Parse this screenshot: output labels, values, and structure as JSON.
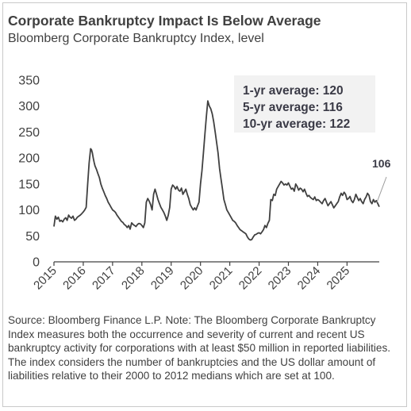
{
  "title": "Corporate Bankruptcy Impact Is Below Average",
  "subtitle": "Bloomberg Corporate Bankruptcy Index, level",
  "source_note": "Source: Bloomberg Finance L.P. Note: The Bloomberg Corporate Bankruptcy Index measures both the occurrence and severity of current and recent US bankruptcy activity for corporations with at least $50 million in reported liabilities. The index considers the number of bankruptcies and the US dollar amount of liabilities relative to their 2000 to 2012 medians which are set at 100.",
  "colors": {
    "line": "#404040",
    "text": "#404040",
    "annotation_bg": "#f2f2f2",
    "annotation_text": "#3a3a46"
  },
  "chart_data": {
    "type": "line",
    "title": "Corporate Bankruptcy Impact Is Below Average",
    "subtitle": "Bloomberg Corporate Bankruptcy Index, level",
    "xlabel": "",
    "ylabel": "",
    "ylim": [
      0,
      350
    ],
    "y_ticks": [
      0,
      50,
      100,
      150,
      200,
      250,
      300,
      350
    ],
    "x_ticks": [
      "2015",
      "2016",
      "2017",
      "2018",
      "2019",
      "2020",
      "2021",
      "2022",
      "2023",
      "2024",
      "2025"
    ],
    "xlim": [
      2015.0,
      2026.1
    ],
    "grid": false,
    "legend": "none",
    "annotations": {
      "averages": [
        "1-yr average: 120",
        "5-yr average: 116",
        "10-yr average: 122"
      ],
      "last_value_label": "106"
    },
    "series": [
      {
        "x": [
          2015.0,
          2015.05,
          2015.1,
          2015.15,
          2015.2,
          2015.25,
          2015.3,
          2015.35,
          2015.4,
          2015.45,
          2015.5,
          2015.55,
          2015.6,
          2015.65,
          2015.7,
          2015.75,
          2015.8,
          2015.85,
          2015.9,
          2015.95,
          2016.0,
          2016.05,
          2016.1,
          2016.15,
          2016.2,
          2016.25,
          2016.28,
          2016.31,
          2016.34,
          2016.37,
          2016.4,
          2016.45,
          2016.5,
          2016.55,
          2016.6,
          2016.65,
          2016.7,
          2016.75,
          2016.8,
          2016.85,
          2016.9,
          2016.95,
          2017.0,
          2017.05,
          2017.1,
          2017.15,
          2017.2,
          2017.25,
          2017.3,
          2017.35,
          2017.4,
          2017.45,
          2017.5,
          2017.55,
          2017.6,
          2017.65,
          2017.7,
          2017.75,
          2017.8,
          2017.85,
          2017.9,
          2017.95,
          2018.0,
          2018.05,
          2018.1,
          2018.15,
          2018.2,
          2018.25,
          2018.3,
          2018.35,
          2018.4,
          2018.45,
          2018.5,
          2018.55,
          2018.6,
          2018.65,
          2018.7,
          2018.75,
          2018.8,
          2018.85,
          2018.9,
          2018.95,
          2019.0,
          2019.05,
          2019.1,
          2019.15,
          2019.2,
          2019.25,
          2019.3,
          2019.35,
          2019.4,
          2019.45,
          2019.5,
          2019.55,
          2019.6,
          2019.65,
          2019.7,
          2019.75,
          2019.8,
          2019.85,
          2019.9,
          2019.95,
          2020.0,
          2020.05,
          2020.1,
          2020.15,
          2020.2,
          2020.25,
          2020.3,
          2020.35,
          2020.4,
          2020.45,
          2020.5,
          2020.55,
          2020.6,
          2020.65,
          2020.7,
          2020.75,
          2020.8,
          2020.85,
          2020.9,
          2020.95,
          2021.0,
          2021.05,
          2021.1,
          2021.15,
          2021.2,
          2021.25,
          2021.3,
          2021.35,
          2021.4,
          2021.45,
          2021.5,
          2021.55,
          2021.6,
          2021.65,
          2021.7,
          2021.75,
          2021.8,
          2021.85,
          2021.9,
          2021.95,
          2022.0,
          2022.05,
          2022.1,
          2022.15,
          2022.2,
          2022.25,
          2022.3,
          2022.35,
          2022.4,
          2022.45,
          2022.5,
          2022.55,
          2022.6,
          2022.65,
          2022.7,
          2022.75,
          2022.8,
          2022.85,
          2022.9,
          2022.95,
          2023.0,
          2023.05,
          2023.1,
          2023.15,
          2023.2,
          2023.25,
          2023.3,
          2023.35,
          2023.4,
          2023.45,
          2023.5,
          2023.55,
          2023.6,
          2023.65,
          2023.7,
          2023.75,
          2023.8,
          2023.85,
          2023.9,
          2023.95,
          2024.0,
          2024.05,
          2024.1,
          2024.15,
          2024.2,
          2024.25,
          2024.3,
          2024.35,
          2024.4,
          2024.45,
          2024.5,
          2024.55,
          2024.6,
          2024.65,
          2024.7,
          2024.75,
          2024.8,
          2024.85,
          2024.9,
          2024.95,
          2025.0,
          2025.05,
          2025.1,
          2025.15,
          2025.2,
          2025.25,
          2025.3,
          2025.35,
          2025.4,
          2025.45,
          2025.5,
          2025.55,
          2025.6,
          2025.65,
          2025.7,
          2025.75,
          2025.8,
          2025.85,
          2025.9,
          2025.95,
          2026.0,
          2026.05,
          2026.1
        ],
        "values": [
          68,
          88,
          82,
          86,
          78,
          80,
          77,
          82,
          85,
          80,
          90,
          86,
          84,
          88,
          80,
          82,
          86,
          88,
          90,
          93,
          96,
          100,
          105,
          150,
          190,
          218,
          216,
          210,
          200,
          192,
          185,
          178,
          170,
          162,
          150,
          142,
          135,
          128,
          122,
          115,
          110,
          105,
          100,
          98,
          95,
          90,
          86,
          82,
          78,
          76,
          72,
          70,
          66,
          70,
          63,
          75,
          72,
          70,
          68,
          72,
          74,
          73,
          70,
          66,
          75,
          115,
          122,
          117,
          110,
          100,
          130,
          140,
          130,
          120,
          112,
          105,
          100,
          95,
          88,
          80,
          90,
          105,
          140,
          148,
          145,
          140,
          145,
          138,
          136,
          142,
          130,
          135,
          140,
          130,
          122,
          110,
          105,
          100,
          104,
          100,
          108,
          115,
          150,
          175,
          210,
          245,
          280,
          310,
          300,
          295,
          285,
          270,
          250,
          230,
          210,
          180,
          160,
          140,
          120,
          110,
          100,
          95,
          90,
          85,
          80,
          78,
          75,
          70,
          66,
          62,
          60,
          58,
          56,
          54,
          48,
          44,
          42,
          43,
          48,
          52,
          53,
          55,
          56,
          54,
          58,
          62,
          70,
          66,
          74,
          80,
          120,
          118,
          130,
          128,
          140,
          145,
          150,
          155,
          152,
          148,
          150,
          148,
          152,
          146,
          140,
          142,
          136,
          150,
          145,
          138,
          142,
          140,
          135,
          140,
          132,
          126,
          128,
          124,
          122,
          120,
          125,
          118,
          120,
          118,
          115,
          112,
          118,
          122,
          115,
          108,
          112,
          116,
          110,
          104,
          108,
          112,
          116,
          125,
          132,
          128,
          134,
          130,
          120,
          122,
          126,
          118,
          114,
          120,
          130,
          124,
          118,
          122,
          116,
          112,
          120,
          125,
          132,
          128,
          116,
          112,
          120,
          115,
          118,
          112,
          106
        ]
      }
    ]
  }
}
